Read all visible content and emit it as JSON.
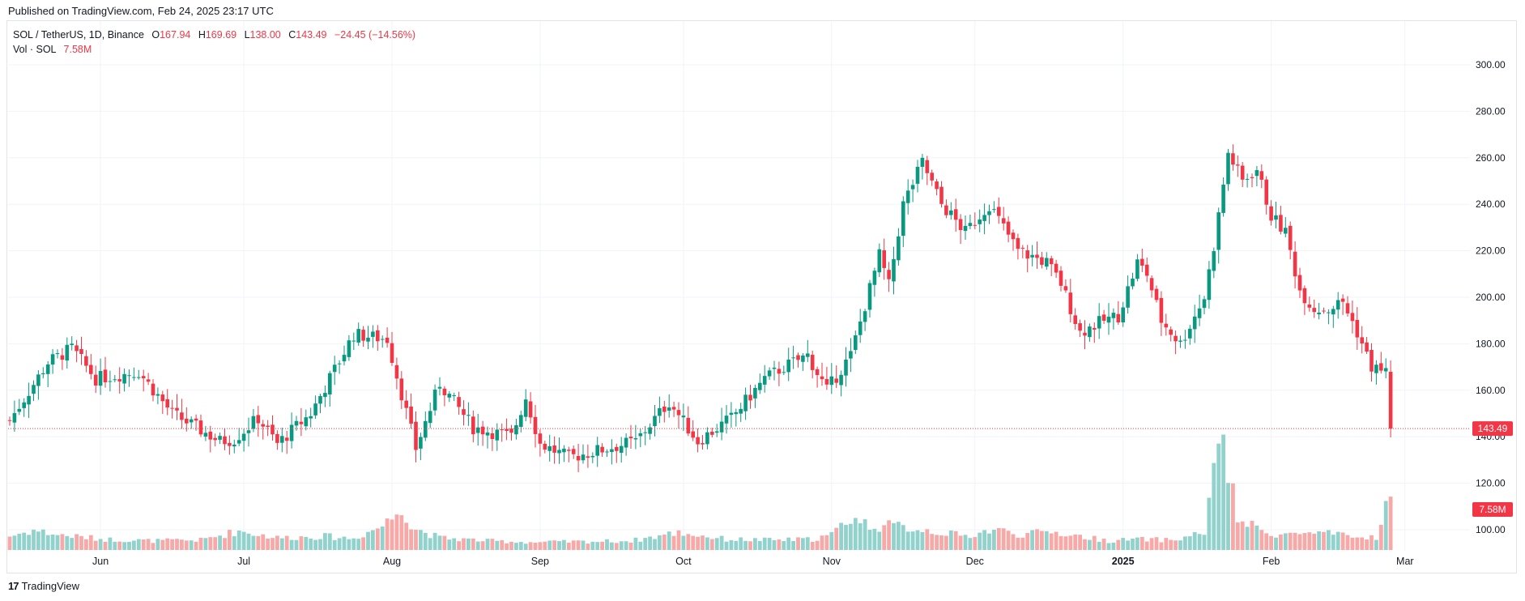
{
  "header": {
    "published": "Published on TradingView.com, Feb 24, 2025 23:17 UTC"
  },
  "legend": {
    "symbol": "SOL / TetherUS, 1D, Binance",
    "o_label": "O",
    "o_value": "167.94",
    "h_label": "H",
    "h_value": "169.69",
    "l_label": "L",
    "l_value": "138.00",
    "c_label": "C",
    "c_value": "143.49",
    "change": "−24.45 (−14.56%)",
    "vol_label": "Vol · SOL",
    "vol_value": "7.58M"
  },
  "footer": {
    "brand": "TradingView",
    "logo_glyph": "17"
  },
  "colors": {
    "up": "#089981",
    "down": "#f23645",
    "up_vol": "#92d2cc",
    "down_vol": "#f7a9a7",
    "grid": "#f0f3fa",
    "last_price_line": "#f23645"
  },
  "chart_data": {
    "type": "candlestick",
    "symbol": "SOL / TetherUS",
    "interval": "1D",
    "exchange": "Binance",
    "ylim": [
      90,
      320
    ],
    "y_ticks": [
      "300.00",
      "280.00",
      "260.00",
      "240.00",
      "220.00",
      "200.00",
      "180.00",
      "160.00",
      "140.00",
      "120.00",
      "100.00"
    ],
    "x_ticks": [
      {
        "label": "Jun",
        "index": 19,
        "bold": false
      },
      {
        "label": "Jul",
        "index": 49,
        "bold": false
      },
      {
        "label": "Aug",
        "index": 80,
        "bold": false
      },
      {
        "label": "Sep",
        "index": 111,
        "bold": false
      },
      {
        "label": "Oct",
        "index": 141,
        "bold": false
      },
      {
        "label": "Nov",
        "index": 172,
        "bold": false
      },
      {
        "label": "Dec",
        "index": 202,
        "bold": false
      },
      {
        "label": "2025",
        "index": 233,
        "bold": true
      },
      {
        "label": "Feb",
        "index": 264,
        "bold": false
      },
      {
        "label": "Mar",
        "index": 292,
        "bold": false
      }
    ],
    "last_price_label": "143.49",
    "last_volume_label": "7.58M",
    "anchors": [
      [
        0,
        147
      ],
      [
        8,
        172
      ],
      [
        13,
        178
      ],
      [
        18,
        165
      ],
      [
        27,
        168
      ],
      [
        34,
        150
      ],
      [
        44,
        138
      ],
      [
        47,
        139
      ],
      [
        52,
        148
      ],
      [
        56,
        137
      ],
      [
        63,
        150
      ],
      [
        72,
        184
      ],
      [
        79,
        182
      ],
      [
        85,
        135
      ],
      [
        90,
        163
      ],
      [
        97,
        144
      ],
      [
        105,
        140
      ],
      [
        108,
        157
      ],
      [
        111,
        137
      ],
      [
        117,
        131
      ],
      [
        121,
        133
      ],
      [
        131,
        138
      ],
      [
        138,
        155
      ],
      [
        144,
        138
      ],
      [
        151,
        148
      ],
      [
        158,
        165
      ],
      [
        162,
        170
      ],
      [
        167,
        175
      ],
      [
        171,
        160
      ],
      [
        176,
        175
      ],
      [
        182,
        218
      ],
      [
        184,
        205
      ],
      [
        187,
        240
      ],
      [
        191,
        258
      ],
      [
        195,
        240
      ],
      [
        200,
        228
      ],
      [
        205,
        240
      ],
      [
        211,
        220
      ],
      [
        217,
        215
      ],
      [
        220,
        206
      ],
      [
        224,
        185
      ],
      [
        229,
        190
      ],
      [
        232,
        192
      ],
      [
        236,
        215
      ],
      [
        238,
        210
      ],
      [
        241,
        190
      ],
      [
        245,
        180
      ],
      [
        250,
        200
      ],
      [
        252,
        222
      ],
      [
        255,
        262
      ],
      [
        258,
        250
      ],
      [
        261,
        255
      ],
      [
        264,
        235
      ],
      [
        267,
        228
      ],
      [
        270,
        203
      ],
      [
        273,
        195
      ],
      [
        276,
        195
      ],
      [
        279,
        198
      ],
      [
        282,
        185
      ],
      [
        285,
        170
      ],
      [
        288,
        168
      ],
      [
        289,
        143.5
      ]
    ],
    "volume_anchors": [
      [
        0,
        1.8
      ],
      [
        5,
        2.6
      ],
      [
        10,
        2.0
      ],
      [
        20,
        1.4
      ],
      [
        30,
        1.2
      ],
      [
        40,
        1.3
      ],
      [
        48,
        2.5
      ],
      [
        56,
        1.6
      ],
      [
        66,
        1.8
      ],
      [
        72,
        1.5
      ],
      [
        78,
        3.2
      ],
      [
        80,
        4.2
      ],
      [
        82,
        6.0
      ],
      [
        84,
        3.0
      ],
      [
        90,
        1.6
      ],
      [
        100,
        1.2
      ],
      [
        110,
        1.0
      ],
      [
        120,
        1.1
      ],
      [
        130,
        1.2
      ],
      [
        140,
        2.3
      ],
      [
        150,
        1.4
      ],
      [
        160,
        1.3
      ],
      [
        168,
        1.4
      ],
      [
        172,
        2.0
      ],
      [
        176,
        4.3
      ],
      [
        180,
        3.2
      ],
      [
        186,
        3.1
      ],
      [
        192,
        2.6
      ],
      [
        200,
        1.8
      ],
      [
        206,
        2.7
      ],
      [
        212,
        2.0
      ],
      [
        218,
        2.4
      ],
      [
        224,
        1.8
      ],
      [
        230,
        1.2
      ],
      [
        236,
        1.4
      ],
      [
        244,
        1.3
      ],
      [
        250,
        2.4
      ],
      [
        253,
        13.0
      ],
      [
        254,
        17.0
      ],
      [
        255,
        10.0
      ],
      [
        257,
        4.0
      ],
      [
        262,
        2.5
      ],
      [
        266,
        2.0
      ],
      [
        270,
        2.2
      ],
      [
        276,
        2.1
      ],
      [
        282,
        1.6
      ],
      [
        286,
        1.7
      ],
      [
        289,
        7.58
      ]
    ],
    "volume_max": 17.5
  }
}
